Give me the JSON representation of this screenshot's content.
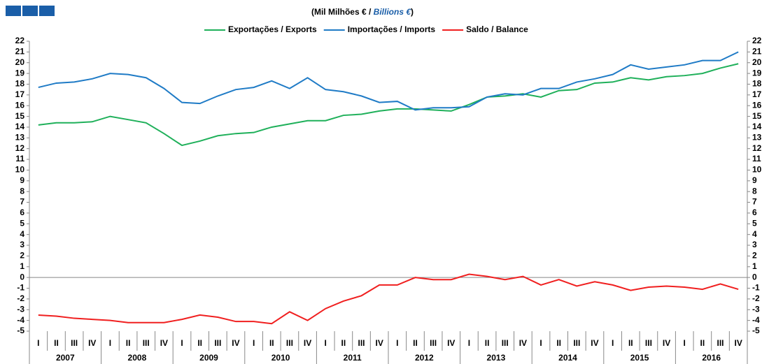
{
  "chart_data": {
    "type": "line",
    "title": [
      "(Mil Milhões € / ",
      "Billions €",
      ")"
    ],
    "categories": [
      "I",
      "II",
      "III",
      "IV",
      "I",
      "II",
      "III",
      "IV",
      "I",
      "II",
      "III",
      "IV",
      "I",
      "II",
      "III",
      "IV",
      "I",
      "II",
      "III",
      "IV",
      "I",
      "II",
      "III",
      "IV",
      "I",
      "II",
      "III",
      "IV",
      "I",
      "II",
      "III",
      "IV",
      "I",
      "II",
      "III",
      "IV",
      "I",
      "II",
      "III",
      "IV"
    ],
    "years": [
      "2007",
      "2008",
      "2009",
      "2010",
      "2011",
      "2012",
      "2013",
      "2014",
      "2015",
      "2016"
    ],
    "series": [
      {
        "name": "Exportações / Exports",
        "color": "#1fb05a",
        "values": [
          14.2,
          14.4,
          14.4,
          14.5,
          15.0,
          14.7,
          14.4,
          13.4,
          12.3,
          12.7,
          13.2,
          13.4,
          13.5,
          14.0,
          14.3,
          14.6,
          14.6,
          15.1,
          15.2,
          15.5,
          15.7,
          15.7,
          15.6,
          15.5,
          16.1,
          16.8,
          16.9,
          17.1,
          16.8,
          17.4,
          17.5,
          18.1,
          18.2,
          18.6,
          18.4,
          18.7,
          18.8,
          19.0,
          19.5,
          19.9
        ]
      },
      {
        "name": "Importações / Imports",
        "color": "#1f7bc6",
        "values": [
          17.7,
          18.1,
          18.2,
          18.5,
          19.0,
          18.9,
          18.6,
          17.6,
          16.3,
          16.2,
          16.9,
          17.5,
          17.7,
          18.3,
          17.6,
          18.6,
          17.5,
          17.3,
          16.9,
          16.3,
          16.4,
          15.6,
          15.8,
          15.8,
          15.9,
          16.8,
          17.1,
          17.0,
          17.6,
          17.6,
          18.2,
          18.5,
          18.9,
          19.8,
          19.4,
          19.6,
          19.8,
          20.2,
          20.2,
          21.0
        ]
      },
      {
        "name": "Saldo / Balance",
        "color": "#f01f1f",
        "values": [
          -3.5,
          -3.6,
          -3.8,
          -3.9,
          -4.0,
          -4.2,
          -4.2,
          -4.2,
          -3.9,
          -3.5,
          -3.7,
          -4.1,
          -4.1,
          -4.3,
          -3.2,
          -4.0,
          -2.9,
          -2.2,
          -1.7,
          -0.7,
          -0.7,
          0.0,
          -0.2,
          -0.2,
          0.3,
          0.1,
          -0.2,
          0.1,
          -0.7,
          -0.2,
          -0.8,
          -0.4,
          -0.7,
          -1.2,
          -0.9,
          -0.8,
          -0.9,
          -1.1,
          -0.6,
          -1.1
        ]
      }
    ],
    "ylim": [
      -5,
      22
    ],
    "yticks": [
      -5,
      -4,
      -3,
      -2,
      -1,
      0,
      1,
      2,
      3,
      4,
      5,
      6,
      7,
      8,
      9,
      10,
      11,
      12,
      13,
      14,
      15,
      16,
      17,
      18,
      19,
      20,
      21,
      22
    ]
  }
}
